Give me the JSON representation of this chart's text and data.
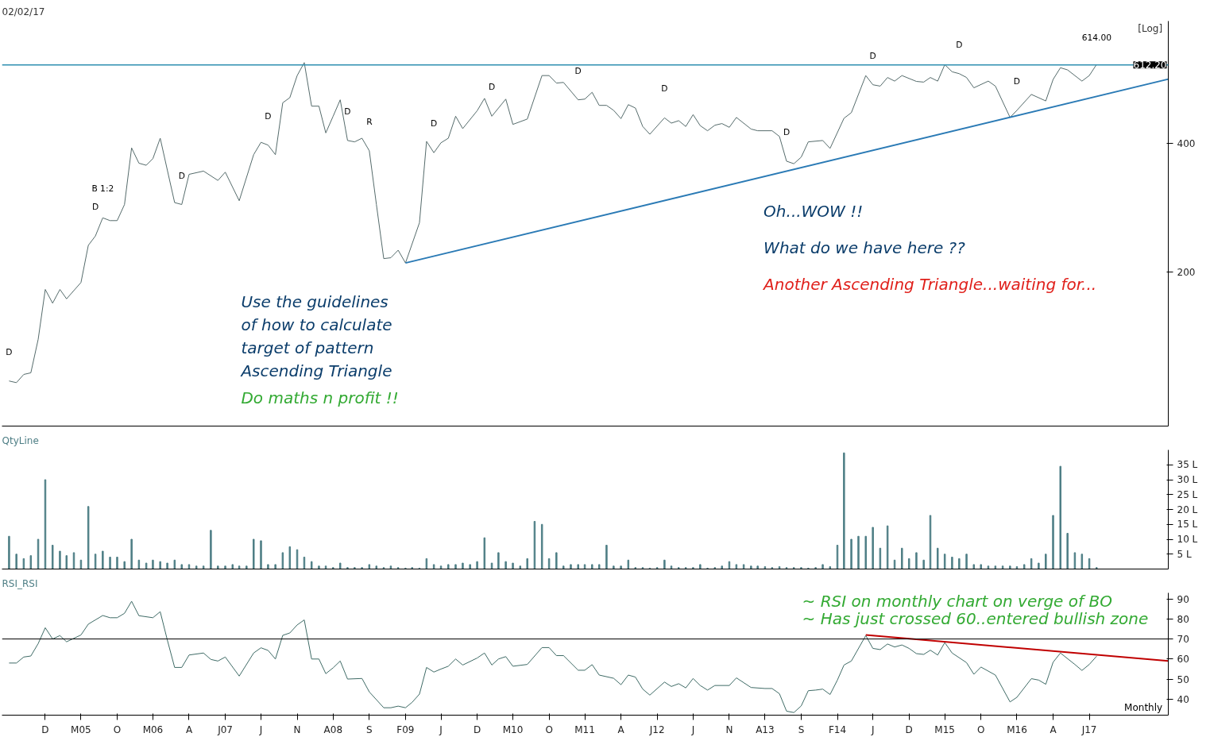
{
  "chart_data": [
    {
      "type": "line",
      "title": "02/02/17",
      "log": true,
      "xlim": [
        "2004-06",
        "2017-12"
      ],
      "ylim": [
        87,
        776
      ],
      "yticks": [
        200,
        400
      ],
      "tick_labels": "y",
      "series": [
        {
          "color": "#556b6b",
          "x": [
            "2004-07",
            "2004-08",
            "2004-09",
            "2004-10",
            "2004-11",
            "2004-12",
            "2005-01",
            "2005-02",
            "2005-03",
            "2005-05",
            "2005-06",
            "2005-07",
            "2005-08",
            "2005-09",
            "2005-10",
            "2005-11",
            "2005-12",
            "2006-01",
            "2006-02",
            "2006-03",
            "2006-04",
            "2006-05",
            "2006-06",
            "2006-07",
            "2006-08",
            "2006-10",
            "2006-12",
            "2007-01",
            "2007-03",
            "2007-05",
            "2007-06",
            "2007-07",
            "2007-08",
            "2007-09",
            "2007-10",
            "2007-11",
            "2007-12",
            "2008-01",
            "2008-02",
            "2008-03",
            "2008-04",
            "2008-05",
            "2008-06",
            "2008-07",
            "2008-08",
            "2008-09",
            "2008-10",
            "2008-11",
            "2008-12",
            "2009-01",
            "2009-02",
            "2009-04",
            "2009-05",
            "2009-06",
            "2009-07",
            "2009-08",
            "2009-09",
            "2009-10",
            "2009-12",
            "2010-01",
            "2010-02",
            "2010-04",
            "2010-05",
            "2010-07",
            "2010-09",
            "2010-10",
            "2010-11",
            "2010-12",
            "2011-02",
            "2011-03",
            "2011-04",
            "2011-05",
            "2011-06",
            "2011-07",
            "2011-08",
            "2011-09",
            "2011-10",
            "2011-11",
            "2011-12",
            "2012-02",
            "2012-03",
            "2012-04",
            "2012-05",
            "2012-06",
            "2012-07",
            "2012-08",
            "2012-09",
            "2012-10",
            "2012-11",
            "2012-12",
            "2013-02",
            "2013-03",
            "2013-05",
            "2013-06",
            "2013-07",
            "2013-08",
            "2013-09",
            "2013-10",
            "2013-12",
            "2014-01",
            "2014-03",
            "2014-04",
            "2014-06",
            "2014-07",
            "2014-08",
            "2014-09",
            "2014-10",
            "2014-11",
            "2015-01",
            "2015-02",
            "2015-03",
            "2015-04",
            "2015-05",
            "2015-06",
            "2015-07",
            "2015-08",
            "2015-09",
            "2015-11",
            "2015-12",
            "2016-02",
            "2016-03",
            "2016-05",
            "2016-07",
            "2016-08",
            "2016-09",
            "2016-10",
            "2016-12",
            "2017-01",
            "2017-02"
          ],
          "values": [
            111,
            110,
            115,
            116,
            139,
            182,
            169,
            182,
            173,
            189,
            231,
            243,
            268,
            264,
            264,
            288,
            391,
            360,
            356,
            369,
            412,
            347,
            291,
            288,
            339,
            345,
            328,
            343,
            294,
            377,
            403,
            397,
            377,
            499,
            513,
            578,
            620,
            490,
            490,
            424,
            464,
            507,
            407,
            404,
            412,
            385,
            288,
            215,
            216,
            225,
            210,
            261,
            405,
            381,
            402,
            412,
            464,
            434,
            478,
            511,
            464,
            509,
            444,
            457,
            578,
            578,
            555,
            557,
            507,
            509,
            528,
            492,
            492,
            479,
            458,
            494,
            485,
            439,
            421,
            460,
            447,
            453,
            439,
            468,
            441,
            429,
            442,
            446,
            437,
            461,
            433,
            429,
            429,
            416,
            364,
            359,
            372,
            404,
            407,
            390,
            459,
            473,
            578,
            550,
            546,
            572,
            561,
            578,
            560,
            558,
            572,
            561,
            613,
            590,
            584,
            572,
            541,
            561,
            546,
            461,
            479,
            522,
            504,
            566,
            603,
            596,
            561,
            578,
            614
          ]
        },
        {
          "type": "line",
          "color": "#2a7ab5",
          "x": [
            "2009-02",
            "2017-12"
          ],
          "values": [
            210,
            567
          ]
        }
      ],
      "ref_lines": [
        {
          "axis": "y",
          "value": 612.2,
          "label": "612.20",
          "color": "#2f8fb0"
        }
      ],
      "annotations": [
        "[Log]",
        "Use the guidelines\nof how to calculate\ntarget of pattern\nAscending Triangle",
        "Do maths n profit !!",
        "Oh...WOW !!",
        "What do we have here ??",
        "Another Ascending Triangle...waiting for...",
        {
          "text": "D",
          "x": "2004-07",
          "y": 111
        },
        {
          "text": "D",
          "x": "2005-07",
          "y": 243
        },
        {
          "text": "B 1:2",
          "x": "2005-08",
          "y": 268
        },
        {
          "text": "D",
          "x": "2006-07",
          "y": 288
        },
        {
          "text": "D",
          "x": "2007-07",
          "y": 397
        },
        {
          "text": "D",
          "x": "2008-06",
          "y": 407
        },
        {
          "text": "R",
          "x": "2008-09",
          "y": 385
        },
        {
          "text": "D",
          "x": "2009-06",
          "y": 381
        },
        {
          "text": "D",
          "x": "2010-02",
          "y": 464
        },
        {
          "text": "D",
          "x": "2011-02",
          "y": 507
        },
        {
          "text": "D",
          "x": "2012-02",
          "y": 460
        },
        {
          "text": "D",
          "x": "2013-07",
          "y": 364
        },
        {
          "text": "D",
          "x": "2014-07",
          "y": 550
        },
        {
          "text": "D",
          "x": "2015-07",
          "y": 584
        },
        {
          "text": "D",
          "x": "2016-03",
          "y": 479
        },
        {
          "text": "614.00",
          "x": "2017-02",
          "y": 614
        }
      ]
    },
    {
      "type": "bar",
      "title": "QtyLine",
      "xlim": [
        "2004-06",
        "2017-12"
      ],
      "ylim": [
        0,
        40
      ],
      "yticks": [
        {
          "value": 5,
          "label": "5 L"
        },
        {
          "value": 10,
          "label": "10 L"
        },
        {
          "value": 15,
          "label": "15 L"
        },
        {
          "value": 20,
          "label": "20 L"
        },
        {
          "value": 25,
          "label": "25 L"
        },
        {
          "value": 30,
          "label": "30 L"
        },
        {
          "value": 35,
          "label": "35 L"
        }
      ],
      "tick_labels": "y",
      "x": [
        "2004-07",
        "2004-08",
        "2004-09",
        "2004-10",
        "2004-11",
        "2004-12",
        "2005-01",
        "2005-02",
        "2005-03",
        "2005-04",
        "2005-05",
        "2005-06",
        "2005-07",
        "2005-08",
        "2005-09",
        "2005-10",
        "2005-11",
        "2005-12",
        "2006-01",
        "2006-02",
        "2006-03",
        "2006-04",
        "2006-05",
        "2006-06",
        "2006-07",
        "2006-08",
        "2006-09",
        "2006-10",
        "2006-11",
        "2006-12",
        "2007-01",
        "2007-02",
        "2007-03",
        "2007-04",
        "2007-05",
        "2007-06",
        "2007-07",
        "2007-08",
        "2007-09",
        "2007-10",
        "2007-11",
        "2007-12",
        "2008-01",
        "2008-02",
        "2008-03",
        "2008-04",
        "2008-05",
        "2008-06",
        "2008-07",
        "2008-08",
        "2008-09",
        "2008-10",
        "2008-11",
        "2008-12",
        "2009-01",
        "2009-02",
        "2009-03",
        "2009-04",
        "2009-05",
        "2009-06",
        "2009-07",
        "2009-08",
        "2009-09",
        "2009-10",
        "2009-11",
        "2009-12",
        "2010-01",
        "2010-02",
        "2010-03",
        "2010-04",
        "2010-05",
        "2010-06",
        "2010-07",
        "2010-08",
        "2010-09",
        "2010-10",
        "2010-11",
        "2010-12",
        "2011-01",
        "2011-02",
        "2011-03",
        "2011-04",
        "2011-05",
        "2011-06",
        "2011-07",
        "2011-08",
        "2011-09",
        "2011-10",
        "2011-11",
        "2011-12",
        "2012-01",
        "2012-02",
        "2012-03",
        "2012-04",
        "2012-05",
        "2012-06",
        "2012-07",
        "2012-08",
        "2012-09",
        "2012-10",
        "2012-11",
        "2012-12",
        "2013-01",
        "2013-02",
        "2013-03",
        "2013-04",
        "2013-05",
        "2013-06",
        "2013-07",
        "2013-08",
        "2013-09",
        "2013-10",
        "2013-11",
        "2013-12",
        "2014-01",
        "2014-02",
        "2014-03",
        "2014-04",
        "2014-05",
        "2014-06",
        "2014-07",
        "2014-08",
        "2014-09",
        "2014-10",
        "2014-11",
        "2014-12",
        "2015-01",
        "2015-02",
        "2015-03",
        "2015-04",
        "2015-05",
        "2015-06",
        "2015-07",
        "2015-08",
        "2015-09",
        "2015-10",
        "2015-11",
        "2015-12",
        "2016-01",
        "2016-02",
        "2016-03",
        "2016-04",
        "2016-05",
        "2016-06",
        "2016-07",
        "2016-08",
        "2016-09",
        "2016-10",
        "2016-11",
        "2016-12",
        "2017-01",
        "2017-02"
      ],
      "series": [
        {
          "color": "#4f7f86",
          "values": [
            11,
            5,
            3.5,
            4.5,
            10,
            30,
            8,
            6,
            4.5,
            5.5,
            3,
            21,
            5,
            6,
            4,
            4,
            2.5,
            10,
            3,
            2,
            3,
            2.5,
            2,
            3,
            1.5,
            1.5,
            1,
            1,
            13,
            1,
            1,
            1.5,
            1,
            1,
            10,
            9.5,
            1.5,
            1.5,
            5.5,
            7.5,
            6.5,
            4,
            2.5,
            1,
            1,
            0.5,
            2,
            0.5,
            0.5,
            0.5,
            1.5,
            1,
            0.5,
            1,
            0.5,
            0.3,
            0.5,
            0.3,
            3.5,
            1.5,
            1,
            1.5,
            1.5,
            2,
            1.5,
            2.5,
            10.5,
            2,
            5.5,
            2.5,
            2,
            1,
            3.5,
            16,
            15,
            3.5,
            5.5,
            1,
            1.5,
            1.5,
            1.5,
            1.5,
            1.5,
            8,
            1,
            1,
            3,
            0.5,
            0.5,
            0.3,
            0.5,
            3,
            1,
            0.5,
            0.5,
            0.5,
            1.5,
            0.3,
            0.5,
            1,
            2.5,
            1.5,
            1.5,
            1,
            1,
            0.8,
            0.5,
            0.8,
            0.5,
            0.5,
            0.5,
            0.3,
            0.5,
            1.5,
            0.8,
            8,
            39,
            10,
            11,
            11,
            14,
            7,
            14.5,
            3,
            7,
            3.5,
            5.5,
            3,
            18,
            7,
            5,
            4,
            3.5,
            5,
            1.5,
            1.5,
            1,
            1,
            1,
            1,
            0.8,
            1.5,
            3.5,
            2,
            5,
            18,
            34.5,
            12,
            5.5,
            5,
            3.5,
            0.5
          ]
        }
      ]
    },
    {
      "type": "line",
      "title": "RSI_RSI",
      "xlim": [
        "2004-06",
        "2017-12"
      ],
      "ylim": [
        32,
        93
      ],
      "yticks": [
        40,
        50,
        60,
        70,
        80,
        90
      ],
      "xticks": [
        {
          "value": "2004-12",
          "label": "D"
        },
        {
          "value": "2005-05",
          "label": "M05"
        },
        {
          "value": "2005-10",
          "label": "O"
        },
        {
          "value": "2006-03",
          "label": "M06"
        },
        {
          "value": "2006-08",
          "label": "A"
        },
        {
          "value": "2007-01",
          "label": "J07"
        },
        {
          "value": "2007-06",
          "label": "J"
        },
        {
          "value": "2007-11",
          "label": "N"
        },
        {
          "value": "2008-04",
          "label": "A08"
        },
        {
          "value": "2008-09",
          "label": "S"
        },
        {
          "value": "2009-02",
          "label": "F09"
        },
        {
          "value": "2009-07",
          "label": "J"
        },
        {
          "value": "2009-12",
          "label": "D"
        },
        {
          "value": "2010-05",
          "label": "M10"
        },
        {
          "value": "2010-10",
          "label": "O"
        },
        {
          "value": "2011-03",
          "label": "M11"
        },
        {
          "value": "2011-08",
          "label": "A"
        },
        {
          "value": "2012-01",
          "label": "J12"
        },
        {
          "value": "2012-06",
          "label": "J"
        },
        {
          "value": "2012-11",
          "label": "N"
        },
        {
          "value": "2013-04",
          "label": "A13"
        },
        {
          "value": "2013-09",
          "label": "S"
        },
        {
          "value": "2014-02",
          "label": "F14"
        },
        {
          "value": "2014-07",
          "label": "J"
        },
        {
          "value": "2014-12",
          "label": "D"
        },
        {
          "value": "2015-05",
          "label": "M15"
        },
        {
          "value": "2015-10",
          "label": "O"
        },
        {
          "value": "2016-03",
          "label": "M16"
        },
        {
          "value": "2016-08",
          "label": "A"
        },
        {
          "value": "2017-01",
          "label": "J17"
        }
      ],
      "series": [
        {
          "color": "#3f6b66",
          "x": [
            "2004-07",
            "2004-08",
            "2004-09",
            "2004-10",
            "2004-11",
            "2004-12",
            "2005-01",
            "2005-02",
            "2005-03",
            "2005-05",
            "2005-06",
            "2005-08",
            "2005-09",
            "2005-10",
            "2005-11",
            "2005-12",
            "2006-01",
            "2006-03",
            "2006-04",
            "2006-05",
            "2006-06",
            "2006-07",
            "2006-08",
            "2006-10",
            "2006-11",
            "2006-12",
            "2007-01",
            "2007-03",
            "2007-05",
            "2007-06",
            "2007-07",
            "2007-08",
            "2007-09",
            "2007-10",
            "2007-11",
            "2007-12",
            "2008-01",
            "2008-02",
            "2008-03",
            "2008-04",
            "2008-05",
            "2008-06",
            "2008-08",
            "2008-09",
            "2008-11",
            "2008-12",
            "2009-01",
            "2009-02",
            "2009-03",
            "2009-04",
            "2009-05",
            "2009-06",
            "2009-07",
            "2009-08",
            "2009-09",
            "2009-10",
            "2009-12",
            "2010-01",
            "2010-02",
            "2010-03",
            "2010-04",
            "2010-05",
            "2010-07",
            "2010-09",
            "2010-10",
            "2010-11",
            "2010-12",
            "2011-02",
            "2011-03",
            "2011-04",
            "2011-05",
            "2011-07",
            "2011-08",
            "2011-09",
            "2011-10",
            "2011-11",
            "2011-12",
            "2012-02",
            "2012-03",
            "2012-04",
            "2012-05",
            "2012-06",
            "2012-07",
            "2012-08",
            "2012-09",
            "2012-11",
            "2012-12",
            "2013-02",
            "2013-04",
            "2013-05",
            "2013-06",
            "2013-07",
            "2013-08",
            "2013-09",
            "2013-10",
            "2013-11",
            "2013-12",
            "2014-01",
            "2014-02",
            "2014-03",
            "2014-04",
            "2014-06",
            "2014-07",
            "2014-08",
            "2014-09",
            "2014-10",
            "2014-11",
            "2014-12",
            "2015-01",
            "2015-02",
            "2015-03",
            "2015-04",
            "2015-05",
            "2015-06",
            "2015-08",
            "2015-09",
            "2015-10",
            "2015-12",
            "2016-01",
            "2016-02",
            "2016-03",
            "2016-05",
            "2016-06",
            "2016-07",
            "2016-08",
            "2016-09",
            "2016-11",
            "2016-12",
            "2017-01",
            "2017-02"
          ],
          "values": [
            58,
            58,
            61,
            61.5,
            67.7,
            75.6,
            70,
            71.7,
            68.6,
            72,
            77.4,
            81.7,
            80.6,
            80.6,
            82.8,
            88.8,
            81.6,
            80.6,
            83.6,
            69.5,
            55.8,
            55.8,
            62,
            63,
            59.8,
            59,
            61,
            51.5,
            63,
            65.6,
            64.3,
            60,
            71.8,
            73,
            77,
            79.5,
            60,
            60,
            52.7,
            55.6,
            59,
            50,
            50.3,
            43.6,
            35.7,
            35.7,
            36.5,
            35.7,
            38.4,
            42.5,
            55.8,
            53.5,
            55,
            56.4,
            60,
            57,
            60.5,
            63,
            57,
            60,
            61.2,
            56.4,
            57.3,
            65.7,
            65.7,
            61.7,
            61.7,
            54.4,
            54.4,
            57.2,
            52,
            50.4,
            47.2,
            52,
            51,
            45,
            42,
            48.5,
            46.3,
            47.7,
            45.6,
            50.3,
            46.8,
            44.5,
            46.8,
            46.8,
            50.6,
            45.8,
            45.3,
            45.3,
            42.7,
            34,
            33.3,
            36.6,
            44.2,
            44.5,
            45,
            42.3,
            49.5,
            57,
            59,
            71.7,
            65.3,
            64.7,
            67.5,
            66,
            67,
            65.3,
            62.7,
            62.3,
            64.4,
            62,
            68.2,
            63,
            58.2,
            52.4,
            56,
            52,
            45.3,
            38.6,
            40.9,
            50.2,
            49.5,
            47.4,
            58.4,
            63,
            57.3,
            54.3,
            57.3,
            61.4
          ]
        },
        {
          "type": "line",
          "color": "#c00000",
          "x": [
            "2014-06",
            "2017-12"
          ],
          "values": [
            72,
            59
          ]
        }
      ],
      "ref_lines": [
        {
          "axis": "y",
          "value": 70,
          "color": "#000000"
        }
      ],
      "annotations": [
        "~ RSI on monthly chart on verge of BO",
        "~ Has just crossed 60..entered bullish zone",
        "Monthly"
      ]
    }
  ]
}
